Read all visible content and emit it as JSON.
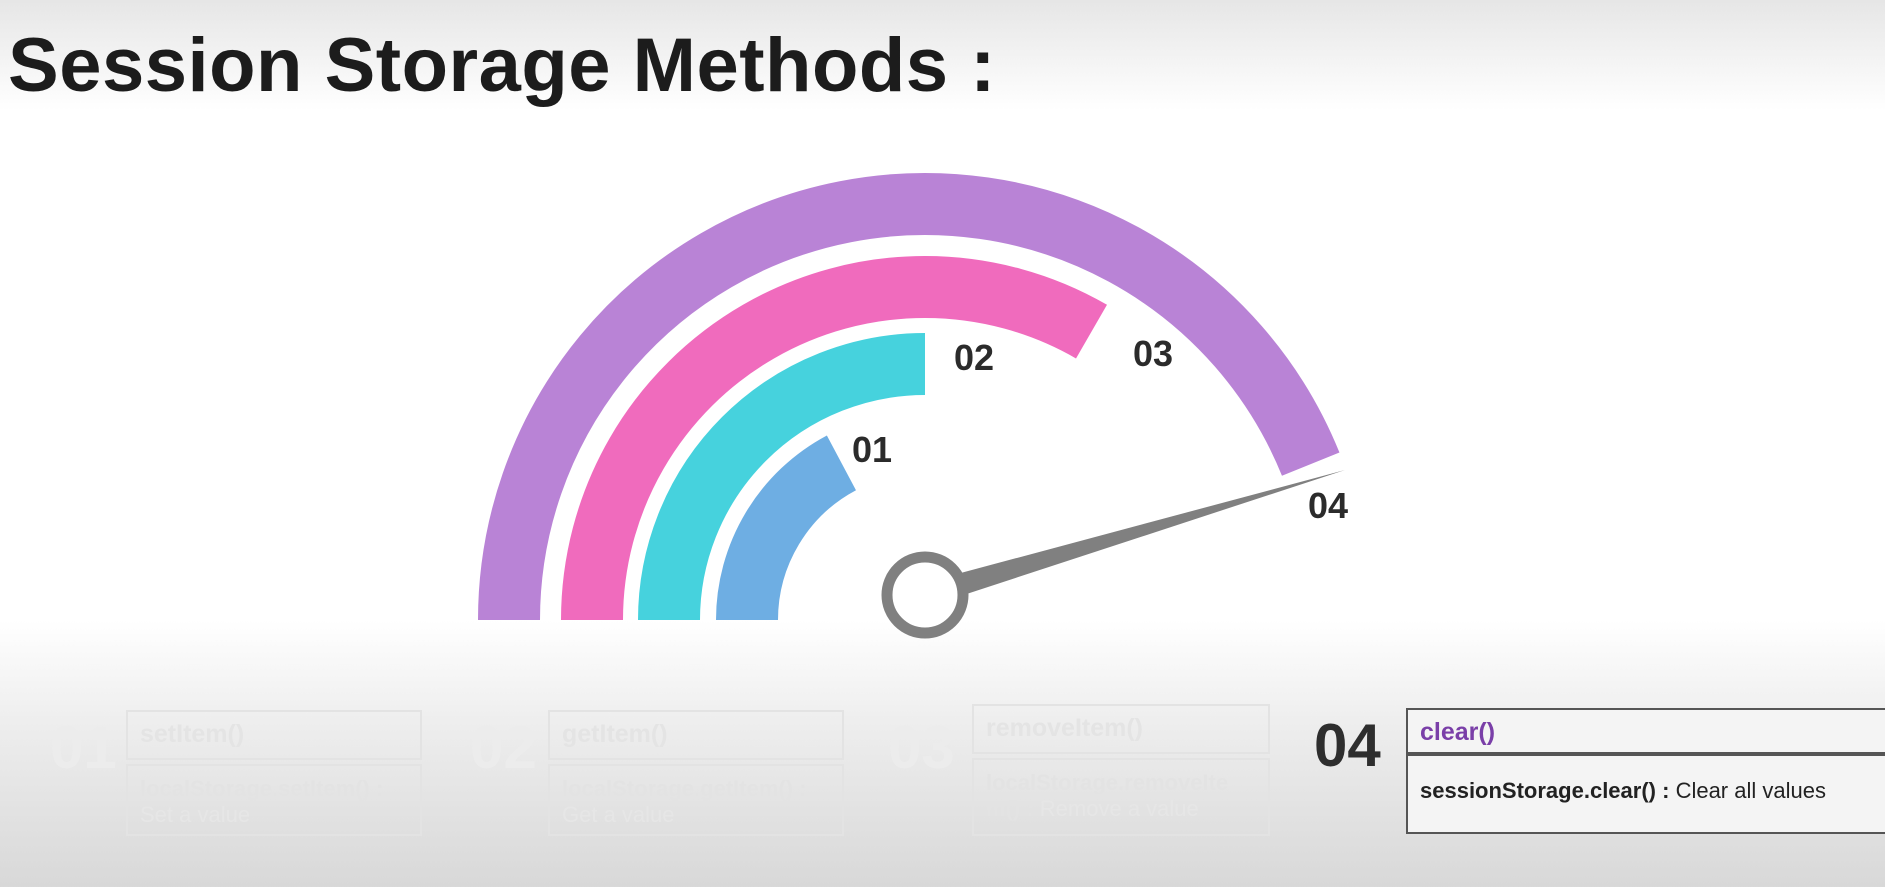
{
  "title": "Session Storage Methods :",
  "gauge": {
    "rings": [
      {
        "label": "01",
        "color": "#6eaee3"
      },
      {
        "label": "02",
        "color": "#46d2dd"
      },
      {
        "label": "03",
        "color": "#f06bbd"
      },
      {
        "label": "04",
        "color": "#b983d6"
      }
    ],
    "needle_color": "#808080",
    "active_label": "04"
  },
  "steps": [
    {
      "num": "01",
      "title": "setItem()",
      "code": "localStorage.setItem() :",
      "desc": "Set a value",
      "state": "faded"
    },
    {
      "num": "02",
      "title": "getItem()",
      "code": "localStorage.getItem() :",
      "desc": "Get a value",
      "state": "faded"
    },
    {
      "num": "03",
      "title": "removeItem()",
      "code": "localStorage.removeIte",
      "code2": "m() :",
      "desc": "Remove a value",
      "state": "faded"
    },
    {
      "num": "04",
      "title": "clear()",
      "code": "sessionStorage.clear() :",
      "desc": "Clear all values",
      "state": "active"
    }
  ]
}
